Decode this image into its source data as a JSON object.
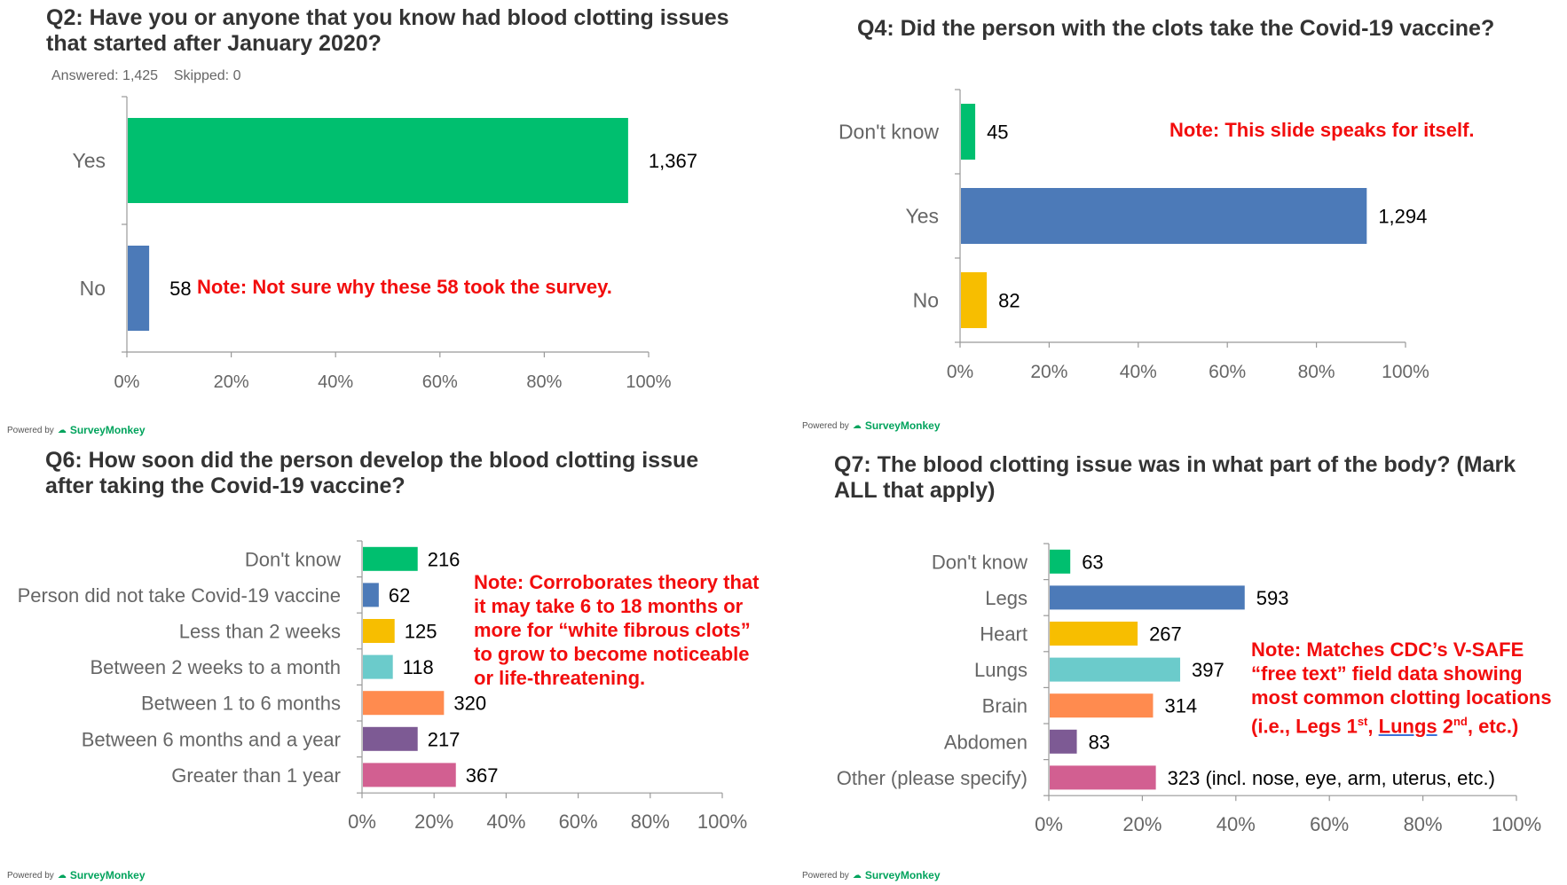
{
  "colors": {
    "green": "#00BF6F",
    "blue": "#4C7AB8",
    "yellow": "#F7BE00",
    "teal": "#6BCBCB",
    "orange": "#FF8B4F",
    "purple": "#7D5A94",
    "pink": "#D25F91",
    "note": "#F20D0D"
  },
  "powered_by": {
    "prefix": "Powered by",
    "brand": "SurveyMonkey",
    "icon": "surveymonkey-logo-icon"
  },
  "chart_data": [
    {
      "type": "bar",
      "orientation": "horizontal",
      "title": "Q2: Have you or anyone that you know had blood clotting issues that started after January 2020?",
      "subtitle": "Answered: 1,425    Skipped: 0",
      "categories": [
        "Yes",
        "No"
      ],
      "values_pct": [
        95.9,
        4.1
      ],
      "value_labels": [
        "1,367",
        "58"
      ],
      "bar_colors": [
        "#00BF6F",
        "#4C7AB8"
      ],
      "xlim": [
        0,
        100
      ],
      "xticks": [
        "0%",
        "20%",
        "40%",
        "60%",
        "80%",
        "100%"
      ],
      "note": [
        "Note:  Not sure why these 58 took the survey."
      ]
    },
    {
      "type": "bar",
      "orientation": "horizontal",
      "title": "Q4: Did the person with the clots take the Covid-19 vaccine?",
      "categories": [
        "Don't know",
        "Yes",
        "No"
      ],
      "values_pct": [
        3.2,
        91.1,
        5.8
      ],
      "value_labels": [
        "45",
        "1,294",
        "82"
      ],
      "bar_colors": [
        "#00BF6F",
        "#4C7AB8",
        "#F7BE00"
      ],
      "xlim": [
        0,
        100
      ],
      "xticks": [
        "0%",
        "20%",
        "40%",
        "60%",
        "80%",
        "100%"
      ],
      "note": [
        "Note:  This slide speaks for itself."
      ]
    },
    {
      "type": "bar",
      "orientation": "horizontal",
      "title": "Q6: How soon did the person develop the blood clotting issue after taking the Covid-19 vaccine?",
      "categories": [
        "Don't know",
        "Person did not take Covid-19 vaccine",
        "Less than 2 weeks",
        "Between 2 weeks to a month",
        "Between 1 to 6 months",
        "Between 6 months and a year",
        "Greater than 1 year"
      ],
      "values_pct": [
        15.2,
        4.4,
        8.8,
        8.3,
        22.5,
        15.2,
        25.8
      ],
      "value_labels": [
        "216",
        "62",
        "125",
        "118",
        "320",
        "217",
        "367"
      ],
      "bar_colors": [
        "#00BF6F",
        "#4C7AB8",
        "#F7BE00",
        "#6BCBCB",
        "#FF8B4F",
        "#7D5A94",
        "#D25F91"
      ],
      "xlim": [
        0,
        100
      ],
      "xticks": [
        "0%",
        "20%",
        "40%",
        "60%",
        "80%",
        "100%"
      ],
      "note": [
        "Note:  Corroborates theory that",
        "it may take 6 to 18 months or",
        "more for “white fibrous clots”",
        "to grow to become noticeable",
        "or life-threatening."
      ]
    },
    {
      "type": "bar",
      "orientation": "horizontal",
      "title": "Q7: The blood clotting issue was in what part of the body? (Mark ALL that apply)",
      "categories": [
        "Don't know",
        "Legs",
        "Heart",
        "Lungs",
        "Brain",
        "Abdomen",
        "Other (please specify)"
      ],
      "values_pct": [
        4.4,
        41.7,
        18.8,
        27.9,
        22.1,
        5.8,
        22.7
      ],
      "value_labels": [
        "63",
        "593",
        "267",
        "397",
        "314",
        "83",
        "323 (incl. nose, eye, arm, uterus, etc.)"
      ],
      "bar_colors": [
        "#00BF6F",
        "#4C7AB8",
        "#F7BE00",
        "#6BCBCB",
        "#FF8B4F",
        "#7D5A94",
        "#D25F91"
      ],
      "xlim": [
        0,
        100
      ],
      "xticks": [
        "0%",
        "20%",
        "40%",
        "60%",
        "80%",
        "100%"
      ],
      "note": [
        "Note:  Matches CDC’s V-SAFE",
        "“free text” field data showing",
        "most common clotting locations"
      ],
      "note_last_line": {
        "a": "(i.e., Legs 1",
        "sup1": "st",
        "b": ", ",
        "u": "Lungs",
        "c": " 2",
        "sup2": "nd",
        "d": ", etc.)"
      }
    }
  ]
}
